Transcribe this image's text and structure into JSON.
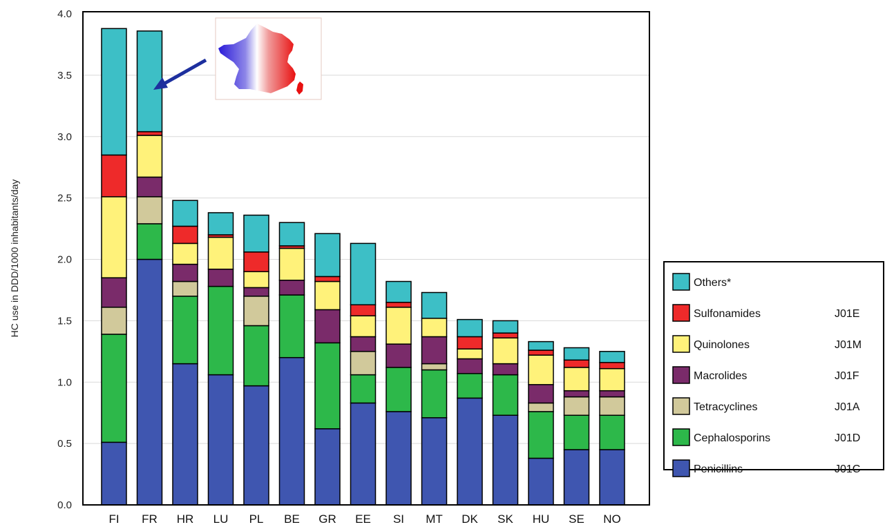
{
  "chart_data": {
    "type": "bar",
    "stacked": true,
    "ylabel": "HC use in DDD/1000 inhabitants/day",
    "ylim": [
      0,
      4
    ],
    "yticks": [
      "0.0",
      "0.5",
      "1.0",
      "1.5",
      "2.0",
      "2.5",
      "3.0",
      "3.5",
      "4.0"
    ],
    "grid": true,
    "legend_position": "right",
    "categories": [
      "FI",
      "FR",
      "HR",
      "LU",
      "PL",
      "BE",
      "GR",
      "EE",
      "SI",
      "MT",
      "DK",
      "SK",
      "HU",
      "SE",
      "NO"
    ],
    "series": [
      {
        "name": "Penicillins",
        "code": "J01C",
        "color": "#3f56b0",
        "values": [
          0.51,
          2.0,
          1.15,
          1.06,
          0.97,
          1.2,
          0.62,
          0.83,
          0.76,
          0.71,
          0.87,
          0.73,
          0.38,
          0.45,
          0.45
        ]
      },
      {
        "name": "Cephalosporins",
        "code": "J01D",
        "color": "#2db84a",
        "values": [
          0.88,
          0.29,
          0.55,
          0.72,
          0.49,
          0.51,
          0.7,
          0.23,
          0.36,
          0.39,
          0.2,
          0.33,
          0.38,
          0.28,
          0.28
        ]
      },
      {
        "name": "Tetracyclines",
        "code": "J01A",
        "color": "#d1c99b",
        "values": [
          0.22,
          0.22,
          0.12,
          0.0,
          0.24,
          0.0,
          0.0,
          0.19,
          0.0,
          0.05,
          0.0,
          0.0,
          0.07,
          0.15,
          0.15
        ]
      },
      {
        "name": "Macrolides",
        "code": "J01F",
        "color": "#7a2b6a",
        "values": [
          0.24,
          0.16,
          0.14,
          0.14,
          0.07,
          0.12,
          0.27,
          0.12,
          0.19,
          0.22,
          0.12,
          0.09,
          0.15,
          0.05,
          0.05
        ]
      },
      {
        "name": "Quinolones",
        "code": "J01M",
        "color": "#fff27a",
        "values": [
          0.66,
          0.34,
          0.17,
          0.26,
          0.13,
          0.26,
          0.23,
          0.17,
          0.3,
          0.15,
          0.08,
          0.21,
          0.24,
          0.19,
          0.18
        ]
      },
      {
        "name": "Sulfonamides",
        "code": "J01E",
        "color": "#ee2a2a",
        "values": [
          0.34,
          0.03,
          0.14,
          0.02,
          0.16,
          0.02,
          0.04,
          0.09,
          0.04,
          0.0,
          0.1,
          0.04,
          0.04,
          0.06,
          0.05
        ]
      },
      {
        "name": "Others*",
        "code": "",
        "color": "#3dbfc6",
        "values": [
          1.03,
          0.82,
          0.21,
          0.18,
          0.3,
          0.19,
          0.35,
          0.5,
          0.17,
          0.21,
          0.14,
          0.1,
          0.07,
          0.1,
          0.09
        ]
      }
    ],
    "legend_order": [
      "Others*",
      "Sulfonamides",
      "Quinolones",
      "Macrolides",
      "Tetracyclines",
      "Cephalosporins",
      "Penicillins"
    ],
    "annotation": {
      "type": "arrow-with-map",
      "points_to": "FR",
      "map": "France map (blue-white-red)"
    }
  }
}
